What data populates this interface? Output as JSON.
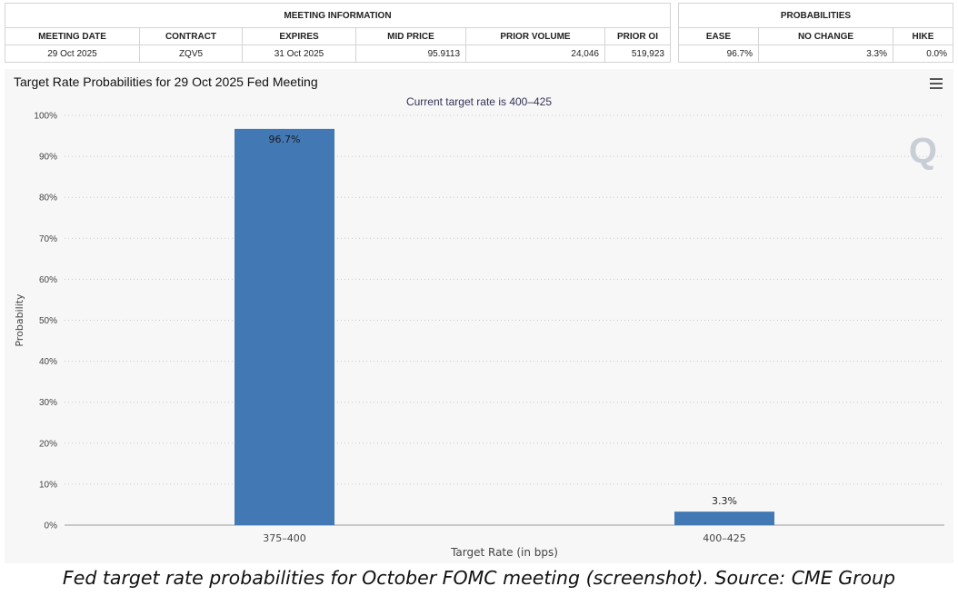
{
  "meeting_info": {
    "section_title": "MEETING INFORMATION",
    "headers": [
      "MEETING DATE",
      "CONTRACT",
      "EXPIRES",
      "MID PRICE",
      "PRIOR VOLUME",
      "PRIOR OI"
    ],
    "values": [
      "29 Oct 2025",
      "ZQV5",
      "31 Oct 2025",
      "95.9113",
      "24,046",
      "519,923"
    ]
  },
  "probabilities": {
    "section_title": "PROBABILITIES",
    "headers": [
      "EASE",
      "NO CHANGE",
      "HIKE"
    ],
    "values": [
      "96.7%",
      "3.3%",
      "0.0%"
    ]
  },
  "chart_data": {
    "type": "bar",
    "title": "Target Rate Probabilities for 29 Oct 2025 Fed Meeting",
    "subtitle": "Current target rate is 400–425",
    "categories": [
      "375–400",
      "400–425"
    ],
    "values": [
      96.7,
      3.3
    ],
    "data_labels": [
      "96.7%",
      "3.3%"
    ],
    "xlabel": "Target Rate (in bps)",
    "ylabel": "Probability",
    "ylim": [
      0,
      100
    ],
    "yticks": [
      "0%",
      "10%",
      "20%",
      "30%",
      "40%",
      "50%",
      "60%",
      "70%",
      "80%",
      "90%",
      "100%"
    ],
    "grid": true,
    "bar_color": "#4279b5"
  },
  "caption": "Fed target rate probabilities for October FOMC meeting (screenshot). Source: CME Group",
  "icons": {
    "menu": "hamburger-menu-icon",
    "watermark": "Q"
  }
}
